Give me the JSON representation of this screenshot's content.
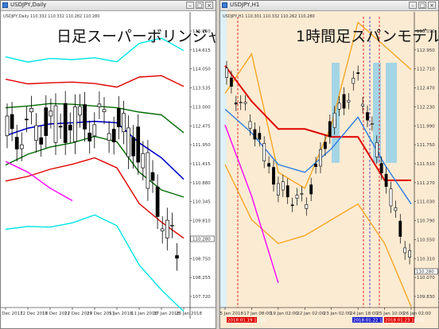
{
  "left": {
    "window_title": "USDJPY,Daily",
    "symbol_line": "USDJPY,Daily  110.332 110.332 110.282 110.280",
    "overlay_title": "日足スーパーボリンジャー",
    "price_ticks": [
      "115.150",
      "114.615",
      "114.050",
      "113.535",
      "113.000",
      "112.475",
      "111.950",
      "111.415",
      "110.880",
      "110.345",
      "109.810",
      "109.290",
      "108.750",
      "108.255",
      "107.720"
    ],
    "current_price_label": "110.280",
    "date_ticks": [
      "4 Dec 2017",
      "12 Dec 2017",
      "18 Dec 2017",
      "22 Dec 2017",
      "29 Dec 2017",
      "5 Jan 2018",
      "11 Jan 2018",
      "17 Jan 2018",
      "23 Jan 2018"
    ]
  },
  "right": {
    "window_title": "USDJPY,H1",
    "symbol_line": "USDJPY,H1  110.301 110.332 110.262 110.280",
    "overlay_title": "1時間足スパンモデル",
    "price_ticks": [
      "113.190",
      "112.950",
      "112.710",
      "112.470",
      "112.230",
      "111.990",
      "111.750",
      "111.510",
      "111.270",
      "111.030",
      "110.790",
      "110.550",
      "110.310",
      "110.070",
      "109.830"
    ],
    "current_price_label": "110.280",
    "date_ticks": [
      "15 Jan 2018",
      "17 Jan 08:00",
      "19 Jan 02:00",
      "22 Jan 02:00",
      "23 Jan 02:00",
      "24 Jan 18:00",
      "25 Jan 10:00",
      "26 Jan 02:00"
    ],
    "marker_labels": [
      "2018.01.19 10:00",
      "2018.01.22 15:00",
      "2018.01.23 18:00"
    ]
  },
  "colors": {
    "bg_right": "#fcebd3",
    "candle": "#000000",
    "band_3sigma": "#00e5e5",
    "band_2sigma": "#e00000",
    "band_1sigma": "#006a00",
    "middle": "#0000c8",
    "chikou": "#ff00ff",
    "span_band": "#f5a623",
    "span_blue": "#2d7de0",
    "span_red": "#e00000",
    "highlight": "#87ceeb"
  },
  "chart_data": [
    {
      "type": "line",
      "title": "日足スーパーボリンジャー",
      "symbol": "USDJPY,Daily",
      "x": [
        "4 Dec 2017",
        "12 Dec 2017",
        "18 Dec 2017",
        "22 Dec 2017",
        "29 Dec 2017",
        "5 Jan 2018",
        "11 Jan 2018",
        "17 Jan 2018",
        "23 Jan 2018"
      ],
      "ylim": [
        107.72,
        115.15
      ],
      "series": [
        {
          "name": "+3σ",
          "values": [
            114.43,
            114.28,
            114.38,
            114.35,
            114.4,
            114.29,
            114.8,
            114.95,
            114.6
          ]
        },
        {
          "name": "+2σ",
          "values": [
            113.8,
            113.67,
            113.7,
            113.72,
            113.68,
            113.58,
            113.86,
            113.9,
            113.6
          ]
        },
        {
          "name": "+1σ",
          "values": [
            113.0,
            113.05,
            113.12,
            113.1,
            113.05,
            113.0,
            112.88,
            112.8,
            112.3
          ]
        },
        {
          "name": "Middle",
          "values": [
            112.22,
            112.43,
            112.55,
            112.58,
            112.62,
            112.58,
            112.02,
            111.6,
            111.0
          ]
        },
        {
          "name": "-1σ",
          "values": [
            111.4,
            111.7,
            111.9,
            112.02,
            112.2,
            112.05,
            111.2,
            110.7,
            110.5
          ]
        },
        {
          "name": "-2σ",
          "values": [
            110.95,
            111.08,
            111.28,
            111.42,
            111.6,
            111.32,
            110.32,
            109.8,
            109.35
          ]
        },
        {
          "name": "-3σ",
          "values": [
            109.6,
            109.68,
            109.66,
            109.78,
            110.0,
            109.7,
            108.6,
            107.9,
            107.3
          ]
        },
        {
          "name": "Chikou",
          "values": [
            111.5,
            111.2,
            110.75,
            110.4,
            null,
            null,
            null,
            null,
            null
          ]
        }
      ]
    },
    {
      "type": "line",
      "title": "1時間足スパンモデル",
      "symbol": "USDJPY,H1",
      "x": [
        "15 Jan 2018",
        "17 Jan 08:00",
        "19 Jan 02:00",
        "22 Jan 02:00",
        "23 Jan 02:00",
        "24 Jan 18:00",
        "25 Jan 10:00",
        "26 Jan 02:00"
      ],
      "ylim": [
        109.83,
        113.19
      ],
      "series": [
        {
          "name": "Upper band",
          "values": [
            112.4,
            112.9,
            111.4,
            111.2,
            112.0,
            113.3,
            113.0,
            112.7
          ]
        },
        {
          "name": "Red span",
          "values": [
            112.75,
            112.3,
            111.95,
            111.95,
            111.85,
            111.85,
            111.3,
            111.3
          ]
        },
        {
          "name": "Blue span",
          "values": [
            112.2,
            111.9,
            111.5,
            111.4,
            111.7,
            112.1,
            111.5,
            111.0
          ]
        },
        {
          "name": "Price",
          "values": [
            112.6,
            112.0,
            111.2,
            111.0,
            112.0,
            112.6,
            111.4,
            110.3
          ]
        },
        {
          "name": "Lower band",
          "values": [
            111.5,
            110.8,
            110.5,
            110.6,
            110.8,
            111.0,
            110.5,
            109.7
          ]
        },
        {
          "name": "Chikou",
          "values": [
            112.0,
            111.1,
            110.0,
            null,
            null,
            null,
            null,
            null
          ]
        }
      ]
    }
  ]
}
